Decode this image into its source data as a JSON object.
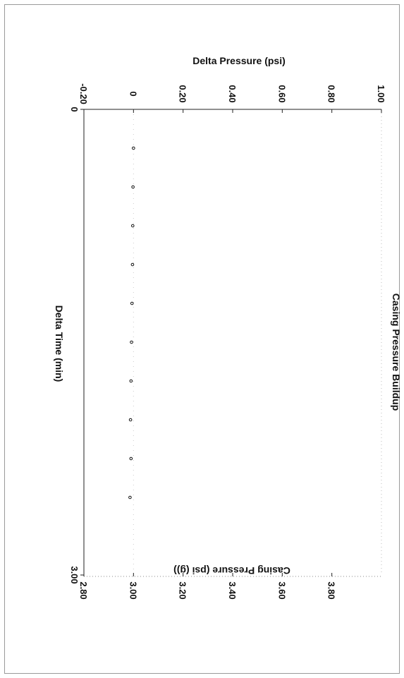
{
  "chart_data": {
    "type": "scatter",
    "title": "Casing Pressure Buildup",
    "xlabel": "Delta Time (min)",
    "ylabel_left": "Delta Pressure (psi)",
    "ylabel_right": "Casing Pressure (psi (g))",
    "xlim": [
      0,
      3.0
    ],
    "ylim_left": [
      -0.2,
      1.0
    ],
    "ylim_right": [
      2.8,
      4.0
    ],
    "x_tick_labels": [
      "0",
      "3.00"
    ],
    "y_left_tick_labels": [
      "-0.20",
      "0",
      "0.20",
      "0.40",
      "0.60",
      "0.80",
      "1.00"
    ],
    "y_left_tick_values": [
      -0.2,
      0,
      0.2,
      0.4,
      0.6,
      0.8,
      1.0
    ],
    "y_right_tick_labels": [
      "2.80",
      "3.00",
      "3.20",
      "3.40",
      "3.60",
      "3.80"
    ],
    "y_right_tick_values": [
      2.8,
      3.0,
      3.2,
      3.4,
      3.6,
      3.8
    ],
    "orientation": "rotated 90 degrees clockwise",
    "grid": false,
    "series": [
      {
        "x": [
          0.25,
          0.5,
          0.75,
          1.0,
          1.25,
          1.5,
          1.75,
          2.0,
          2.25,
          2.5
        ],
        "y": [
          0.0,
          -0.002,
          -0.003,
          -0.004,
          -0.006,
          -0.008,
          -0.01,
          -0.012,
          -0.01,
          -0.014
        ],
        "marker": "circle",
        "color": "#111111"
      }
    ]
  }
}
